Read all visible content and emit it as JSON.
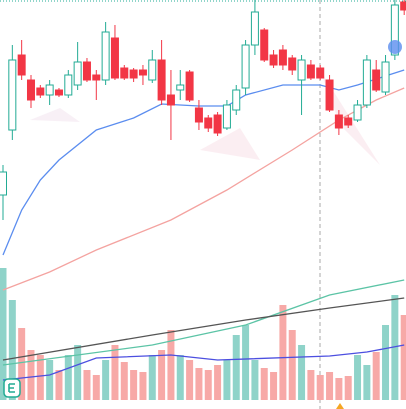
{
  "chart_data": {
    "type": "candlestick",
    "price": {
      "ylim": [
        -40,
        260
      ],
      "up_color": "#22ab94",
      "down_color": "#f23645",
      "open": [
        65,
        130,
        205,
        180,
        172,
        165,
        170,
        165,
        175,
        198,
        185,
        180,
        222,
        192,
        190,
        190,
        180,
        200,
        165,
        170,
        188,
        152,
        142,
        145,
        132,
        150,
        172,
        215,
        230,
        205,
        210,
        202,
        180,
        195,
        192,
        180,
        145,
        142,
        140,
        155,
        190,
        168,
        205,
        258
      ],
      "high": [
        95,
        215,
        220,
        185,
        175,
        180,
        172,
        190,
        218,
        202,
        190,
        238,
        235,
        195,
        192,
        195,
        210,
        220,
        190,
        190,
        190,
        160,
        145,
        148,
        160,
        175,
        220,
        260,
        232,
        210,
        215,
        205,
        205,
        200,
        195,
        185,
        150,
        145,
        160,
        205,
        200,
        205,
        260,
        260
      ],
      "low": [
        40,
        120,
        180,
        152,
        162,
        155,
        163,
        162,
        170,
        178,
        160,
        175,
        180,
        180,
        178,
        175,
        177,
        155,
        120,
        160,
        158,
        130,
        128,
        124,
        130,
        145,
        165,
        205,
        198,
        192,
        190,
        185,
        145,
        180,
        180,
        148,
        125,
        132,
        138,
        152,
        168,
        165,
        200,
        245
      ],
      "close": [
        88,
        200,
        185,
        160,
        165,
        175,
        165,
        185,
        198,
        180,
        180,
        228,
        182,
        182,
        182,
        185,
        200,
        160,
        155,
        175,
        160,
        138,
        132,
        127,
        155,
        170,
        215,
        248,
        200,
        195,
        195,
        190,
        200,
        182,
        182,
        150,
        132,
        135,
        155,
        200,
        170,
        198,
        255,
        250
      ],
      "lines": [
        {
          "color": "#5b8def",
          "x": [
            0,
            2,
            4,
            6,
            10,
            14,
            17,
            21,
            24,
            26,
            30,
            34,
            36,
            38,
            43
          ],
          "values": [
            5,
            50,
            80,
            100,
            130,
            142,
            156,
            154,
            154,
            165,
            175,
            175,
            170,
            175,
            190
          ]
        },
        {
          "color": "#f4a3a0",
          "x": [
            0,
            5,
            10,
            18,
            24,
            31,
            36,
            40,
            43
          ],
          "values": [
            -30,
            -12,
            10,
            40,
            70,
            110,
            140,
            160,
            172
          ]
        }
      ]
    },
    "volume": {
      "ylim": [
        0,
        140
      ],
      "up_color": "#8fd3c9",
      "down_color": "#f7a9a7",
      "values": [
        132,
        100,
        72,
        50,
        45,
        40,
        30,
        45,
        55,
        30,
        25,
        40,
        55,
        38,
        30,
        28,
        45,
        50,
        70,
        45,
        40,
        32,
        30,
        35,
        40,
        65,
        75,
        40,
        32,
        28,
        95,
        70,
        55,
        30,
        25,
        28,
        22,
        24,
        45,
        35,
        48,
        75,
        105,
        85
      ],
      "lines": [
        {
          "color": "#5cc4a6",
          "x": [
            0,
            16,
            26,
            35,
            43
          ],
          "values": [
            35,
            55,
            75,
            105,
            120
          ]
        },
        {
          "color": "#555555",
          "x": [
            0,
            16,
            26,
            35,
            43
          ],
          "values": [
            40,
            65,
            80,
            92,
            102
          ]
        },
        {
          "color": "#4c4fe0",
          "x": [
            0,
            5,
            10,
            18,
            23,
            35,
            39,
            43
          ],
          "values": [
            20,
            25,
            42,
            45,
            40,
            44,
            48,
            55
          ]
        }
      ]
    }
  }
}
